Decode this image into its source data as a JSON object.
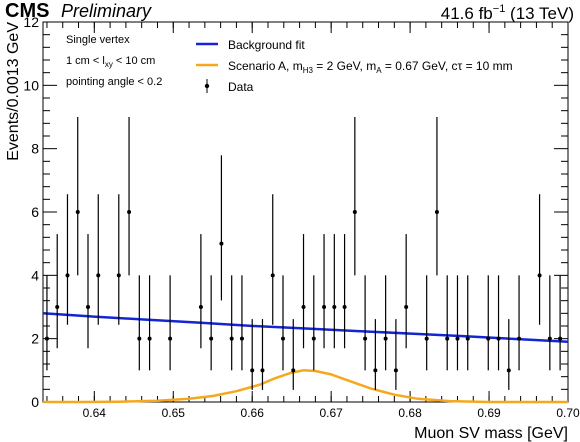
{
  "header": {
    "experiment": "CMS",
    "status": "Preliminary",
    "lumi_value": "41.6 fb",
    "lumi_exponent": "−1",
    "energy": "(13 TeV)"
  },
  "annotation": {
    "line1": "Single vertex",
    "line2_pre": "1 cm < l",
    "line2_sub": "xy",
    "line2_post": " < 10 cm",
    "line3": "pointing angle < 0.2"
  },
  "legend": {
    "background": "Background fit",
    "signal_pre": "Scenario A, m",
    "signal_sub1": "H3",
    "signal_mid": " = 2 GeV, m",
    "signal_sub2": "A",
    "signal_post": " = 0.67 GeV, cτ = 10 mm",
    "data": "Data"
  },
  "chart_data": {
    "type": "scatter",
    "xlabel": "Muon SV mass [GeV]",
    "ylabel": "Events/0.0013 GeV",
    "xlim": [
      0.6335,
      0.7
    ],
    "ylim": [
      0,
      12
    ],
    "xticks": [
      0.64,
      0.65,
      0.66,
      0.67,
      0.68,
      0.69,
      0.7
    ],
    "xtick_labels": [
      "0.64",
      "0.65",
      "0.66",
      "0.67",
      "0.68",
      "0.69",
      "0.70"
    ],
    "yticks": [
      0,
      2,
      4,
      6,
      8,
      10,
      12
    ],
    "ytick_labels": [
      "0",
      "2",
      "4",
      "6",
      "8",
      "10",
      "12"
    ],
    "legend_position": "top-center",
    "colors": {
      "background": "#1426d4",
      "signal": "#f5a81d",
      "data": "#000000"
    },
    "series": [
      {
        "name": "Data",
        "type": "points-with-errors",
        "x": [
          0.634,
          0.6353,
          0.6366,
          0.6379,
          0.6392,
          0.6405,
          0.6431,
          0.6444,
          0.6457,
          0.647,
          0.6496,
          0.6535,
          0.6548,
          0.6561,
          0.6574,
          0.6587,
          0.66,
          0.6613,
          0.6626,
          0.6639,
          0.6652,
          0.6665,
          0.6678,
          0.6691,
          0.6704,
          0.6717,
          0.673,
          0.6743,
          0.6756,
          0.6769,
          0.6782,
          0.6795,
          0.6821,
          0.6834,
          0.6847,
          0.686,
          0.6873,
          0.6899,
          0.6912,
          0.6925,
          0.6938,
          0.6964,
          0.6977,
          0.699
        ],
        "y": [
          2,
          3,
          4,
          6,
          3,
          4,
          4,
          6,
          2,
          2,
          2,
          3,
          2,
          5,
          2,
          2,
          1,
          1,
          4,
          2,
          1,
          3,
          2,
          3,
          3,
          3,
          6,
          2,
          1,
          2,
          1,
          3,
          2,
          6,
          2,
          2,
          2,
          2,
          2,
          1,
          2,
          4,
          2,
          2
        ]
      },
      {
        "name": "Background fit",
        "type": "line",
        "x": [
          0.6335,
          0.6402,
          0.6468,
          0.6535,
          0.6601,
          0.6668,
          0.6734,
          0.6801,
          0.6867,
          0.6934,
          0.7
        ],
        "y": [
          2.8,
          2.69,
          2.6,
          2.5,
          2.4,
          2.32,
          2.24,
          2.16,
          2.08,
          1.99,
          1.9
        ]
      },
      {
        "name": "Scenario A, mH3 = 2 GeV, mA = 0.67 GeV, cτ = 10 mm",
        "type": "line",
        "x": [
          0.6335,
          0.638,
          0.643,
          0.648,
          0.652,
          0.655,
          0.658,
          0.661,
          0.663,
          0.665,
          0.6665,
          0.668,
          0.67,
          0.672,
          0.675,
          0.678,
          0.681,
          0.685,
          0.69,
          0.695,
          0.7
        ],
        "y": [
          0.0,
          0.0,
          0.01,
          0.04,
          0.1,
          0.19,
          0.34,
          0.55,
          0.76,
          0.93,
          1.0,
          0.98,
          0.87,
          0.69,
          0.43,
          0.23,
          0.1,
          0.03,
          0.0,
          0.0,
          0.0
        ]
      }
    ]
  }
}
